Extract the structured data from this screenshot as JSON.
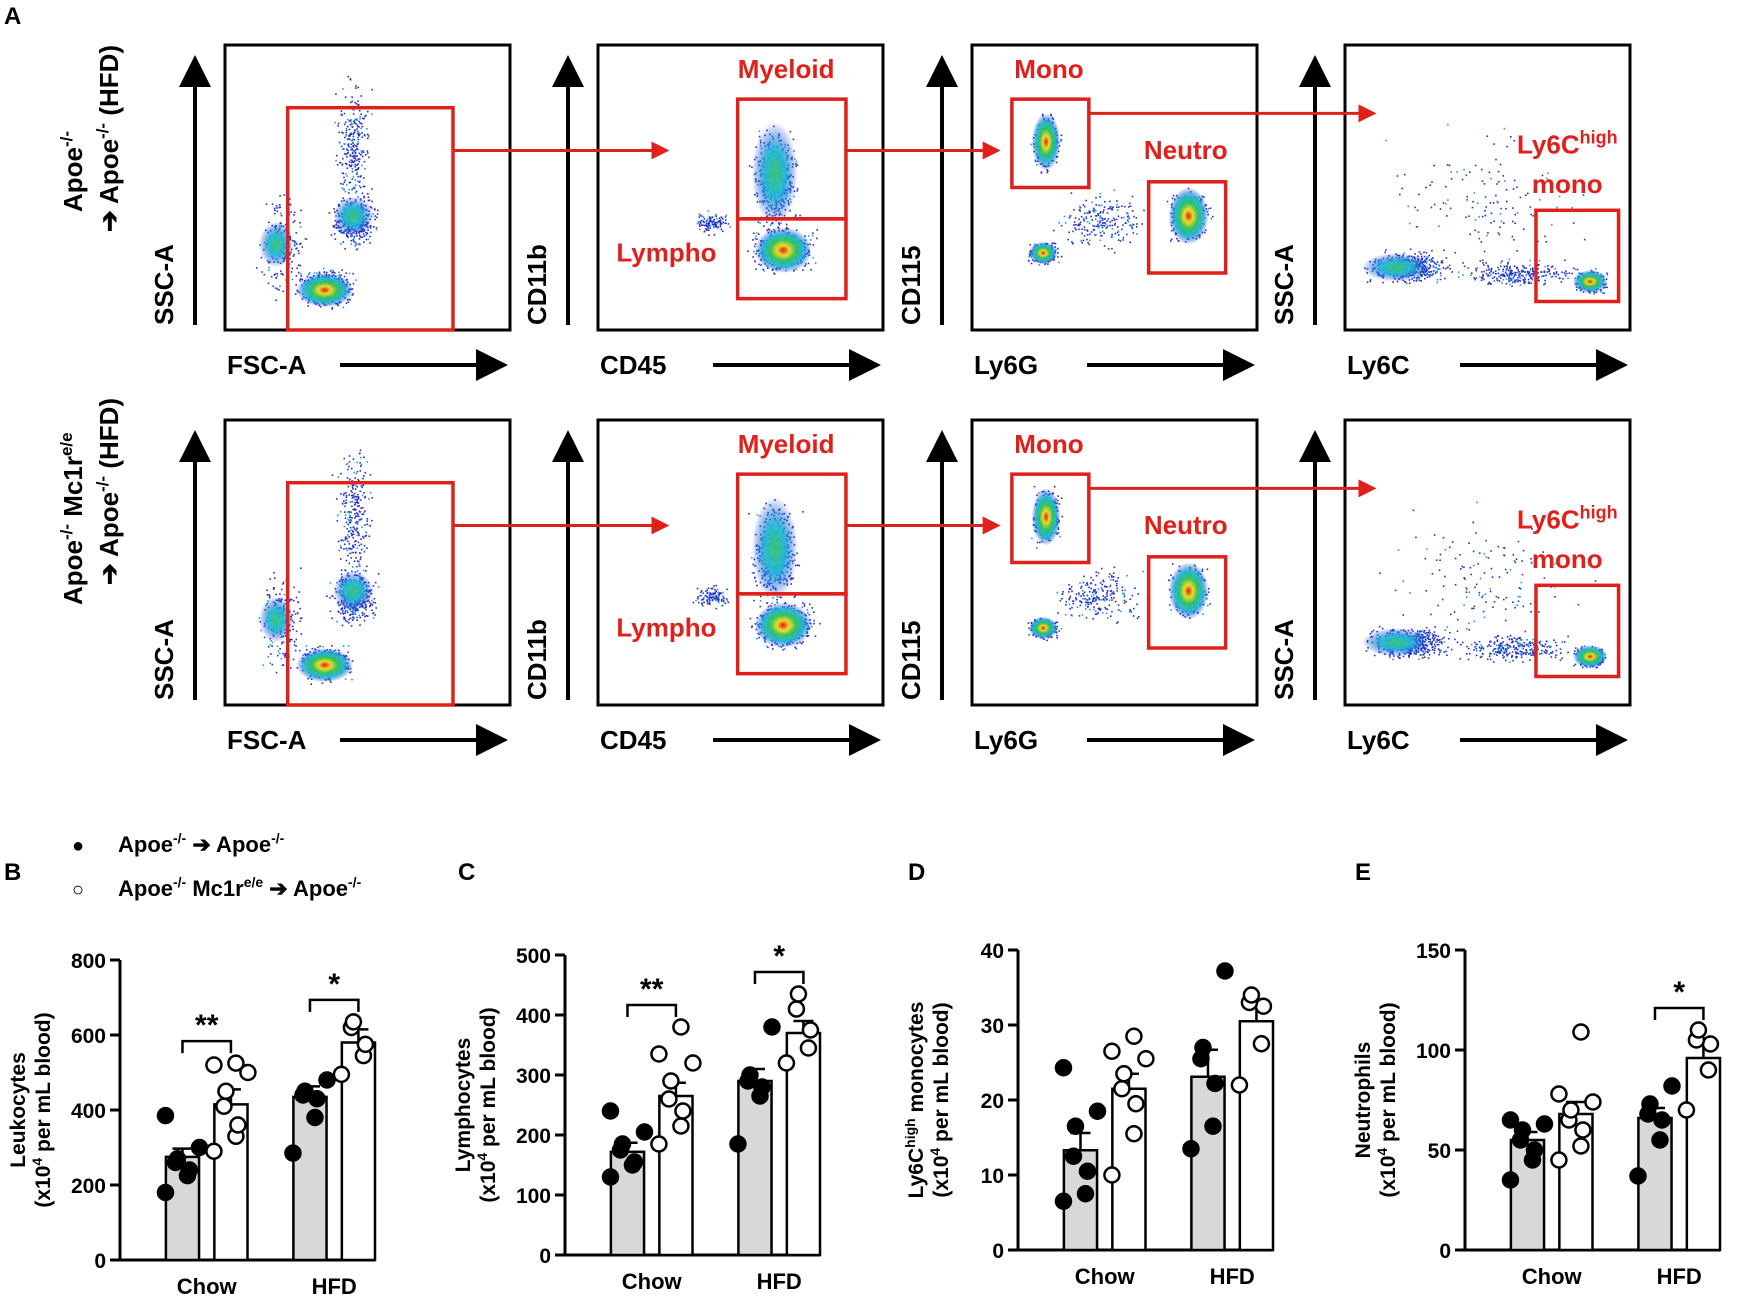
{
  "panel_letters": {
    "a": "A",
    "b": "B",
    "c": "C",
    "d": "D",
    "e": "E"
  },
  "colors": {
    "gate": "#e0201b",
    "bar_fill": "#d8d8d8",
    "axis": "#000000"
  },
  "flow": {
    "rows": [
      {
        "label_line1": "Apoe",
        "label_line1_sup": "-/-",
        "label_line2": "➔ Apoe",
        "label_line2_sup": "-/-",
        "label_line2_suffix": " (HFD)"
      },
      {
        "label_line1": "Apoe",
        "label_line1_sup": "-/-",
        "label_line1_mid": " Mc1r",
        "label_line1_sup2": "e/e",
        "label_line2": "➔ Apoe",
        "label_line2_sup": "-/-",
        "label_line2_suffix": " (HFD)"
      }
    ],
    "plots": [
      {
        "x_label": "FSC-A",
        "y_label": "SSC-A",
        "gates": []
      },
      {
        "x_label": "CD45",
        "y_label": "CD11b",
        "gates": [
          "Myeloid",
          "Lympho"
        ]
      },
      {
        "x_label": "Ly6G",
        "y_label": "CD115",
        "gates": [
          "Mono",
          "Neutro"
        ]
      },
      {
        "x_label": "Ly6C",
        "y_label": "SSC-A",
        "gates": [
          "Ly6C",
          "high",
          "mono"
        ]
      }
    ]
  },
  "legend": {
    "filled_label": "Apoe",
    "filled_sup1": "-/-",
    "filled_arrow": " ➔ Apoe",
    "filled_sup2": "-/-",
    "open_label": "Apoe",
    "open_sup1": "-/-",
    "open_mid": " Mc1r",
    "open_sup_mid": "e/e",
    "open_arrow": " ➔ Apoe",
    "open_sup2": "-/-",
    "filled_marker": "●",
    "open_marker": "○"
  },
  "chart_data": [
    {
      "type": "bar",
      "panel": "B",
      "categories": [
        "Chow",
        "HFD"
      ],
      "ylabel_line1": "Leukocytes",
      "ylabel_line2": "(x10",
      "ylabel_sup": "4",
      "ylabel_suffix": " per mL blood)",
      "ylim": [
        0,
        800
      ],
      "yticks": [
        0,
        200,
        400,
        600,
        800
      ],
      "series": [
        {
          "name": "Apoe-/- → Apoe-/-",
          "style": "filled",
          "values": [
            275,
            435
          ],
          "sem": [
            22,
            28
          ],
          "points": [
            [
              180,
              225,
              240,
              260,
              270,
              300,
              385
            ],
            [
              285,
              380,
              430,
              440,
              450,
              480
            ]
          ]
        },
        {
          "name": "Apoe-/- Mc1re/e → Apoe-/-",
          "style": "open",
          "values": [
            415,
            580
          ],
          "sem": [
            40,
            35
          ],
          "points": [
            [
              290,
              330,
              360,
              410,
              450,
              500,
              520,
              525
            ],
            [
              495,
              545,
              575,
              620,
              635
            ]
          ]
        }
      ],
      "significance": [
        "**",
        "*"
      ]
    },
    {
      "type": "bar",
      "panel": "C",
      "categories": [
        "Chow",
        "HFD"
      ],
      "ylabel_line1": "Lymphocytes",
      "ylabel_line2": "(x10",
      "ylabel_sup": "4",
      "ylabel_suffix": " per mL blood)",
      "ylim": [
        0,
        500
      ],
      "yticks": [
        0,
        100,
        200,
        300,
        400,
        500
      ],
      "series": [
        {
          "name": "Apoe-/- → Apoe-/-",
          "style": "filled",
          "values": [
            172,
            290
          ],
          "sem": [
            15,
            20
          ],
          "points": [
            [
              130,
              150,
              155,
              175,
              185,
              205,
              240
            ],
            [
              185,
              265,
              280,
              290,
              300,
              380
            ]
          ]
        },
        {
          "name": "Apoe-/- Mc1re/e → Apoe-/-",
          "style": "open",
          "values": [
            265,
            370
          ],
          "sem": [
            22,
            20
          ],
          "points": [
            [
              185,
              215,
              240,
              260,
              290,
              320,
              335,
              380
            ],
            [
              320,
              345,
              375,
              410,
              435
            ]
          ]
        }
      ],
      "significance": [
        "**",
        "*"
      ]
    },
    {
      "type": "bar",
      "panel": "D",
      "categories": [
        "Chow",
        "HFD"
      ],
      "ylabel_line1": "Ly6C",
      "ylabel_line1_sup": "high",
      "ylabel_line1_suffix": " monocytes",
      "ylabel_line2": "(x10",
      "ylabel_sup": "4",
      "ylabel_suffix": " per mL blood)",
      "ylim": [
        0,
        40
      ],
      "yticks": [
        0,
        10,
        20,
        30,
        40
      ],
      "series": [
        {
          "name": "Apoe-/- → Apoe-/-",
          "style": "filled",
          "values": [
            13.3,
            23.1
          ],
          "sem": [
            2.3,
            3.6
          ],
          "points": [
            [
              6.5,
              7.5,
              10.5,
              12.5,
              16.5,
              18.5,
              24.3
            ],
            [
              13.5,
              16.5,
              22.2,
              25.5,
              27.0,
              37.2
            ]
          ]
        },
        {
          "name": "Apoe-/- Mc1re/e → Apoe-/-",
          "style": "open",
          "values": [
            21.5,
            30.5
          ],
          "sem": [
            2.0,
            2.2
          ],
          "points": [
            [
              10.0,
              15.5,
              19.5,
              21.5,
              23.5,
              25.5,
              26.5,
              28.5
            ],
            [
              22.0,
              27.5,
              32.5,
              33.0,
              34.0
            ]
          ]
        }
      ],
      "significance": []
    },
    {
      "type": "bar",
      "panel": "E",
      "categories": [
        "Chow",
        "HFD"
      ],
      "ylabel_line1": "Neutrophils",
      "ylabel_line2": "(x10",
      "ylabel_sup": "4",
      "ylabel_suffix": " per mL blood)",
      "ylim": [
        0,
        150
      ],
      "yticks": [
        0,
        50,
        100,
        150
      ],
      "series": [
        {
          "name": "Apoe-/- → Apoe-/-",
          "style": "filled",
          "values": [
            55,
            66
          ],
          "sem": [
            4,
            5
          ],
          "points": [
            [
              35,
              45,
              50,
              55,
              60,
              63,
              65
            ],
            [
              37,
              55,
              65,
              68,
              73,
              82
            ]
          ]
        },
        {
          "name": "Apoe-/- Mc1re/e → Apoe-/-",
          "style": "open",
          "values": [
            68,
            96
          ],
          "sem": [
            6,
            9
          ],
          "points": [
            [
              45,
              52,
              60,
              65,
              70,
              74,
              78,
              109
            ],
            [
              70,
              90,
              103,
              105,
              110
            ]
          ]
        }
      ],
      "significance": [
        "",
        "*"
      ]
    }
  ],
  "x_category_labels": [
    "Chow",
    "HFD"
  ]
}
